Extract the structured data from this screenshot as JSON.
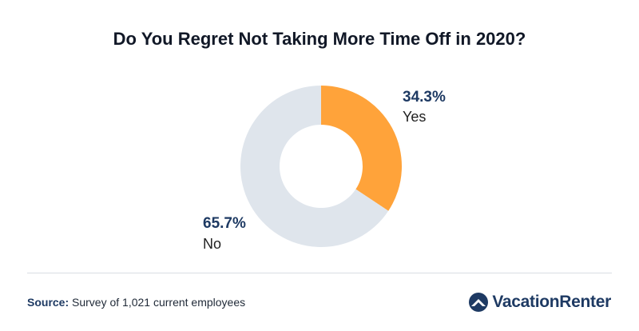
{
  "chart_data": {
    "type": "pie",
    "title": "Do You Regret Not Taking More Time Off in 2020?",
    "donut": true,
    "slices": [
      {
        "label": "Yes",
        "value": 34.3,
        "display": "34.3%",
        "color": "#ffa33a"
      },
      {
        "label": "No",
        "value": 65.7,
        "display": "65.7%",
        "color": "#dfe5ec"
      }
    ]
  },
  "footer": {
    "source_label": "Source:",
    "source_text": " Survey of 1,021 current employees"
  },
  "brand": {
    "logo_text": "VacationRenter",
    "logo_icon": "house-globe-icon",
    "color": "#1e3a63"
  }
}
